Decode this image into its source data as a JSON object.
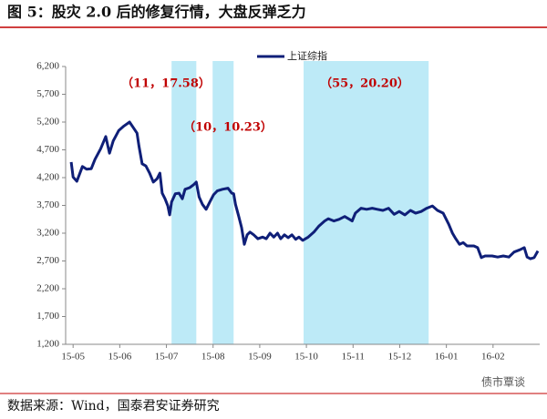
{
  "chart_data": {
    "type": "line",
    "title": "图 5：股灾 2.0 后的修复行情，大盘反弹乏力",
    "source": "数据来源：Wind，国泰君安证券研究",
    "watermark": "债市覃谈",
    "series": [
      {
        "name": "上证综指",
        "color": "#0f1f78",
        "x": [
          -0.04,
          0,
          0.08,
          0.2,
          0.29,
          0.39,
          0.47,
          0.59,
          0.7,
          0.78,
          0.86,
          0.98,
          1.09,
          1.21,
          1.29,
          1.37,
          1.41,
          1.48,
          1.56,
          1.64,
          1.72,
          1.8,
          1.86,
          1.91,
          1.97,
          2.03,
          2.07,
          2.11,
          2.19,
          2.27,
          2.34,
          2.4,
          2.5,
          2.58,
          2.64,
          2.7,
          2.77,
          2.85,
          2.93,
          3.01,
          3.09,
          3.2,
          3.32,
          3.4,
          3.44,
          3.48,
          3.55,
          3.61,
          3.67,
          3.73,
          3.79,
          3.87,
          3.96,
          4.06,
          4.14,
          4.22,
          4.3,
          4.38,
          4.45,
          4.53,
          4.61,
          4.69,
          4.77,
          4.84,
          4.92,
          5.04,
          5.16,
          5.27,
          5.39,
          5.47,
          5.59,
          5.7,
          5.82,
          5.98,
          6.05,
          6.17,
          6.29,
          6.41,
          6.52,
          6.64,
          6.76,
          6.88,
          6.99,
          7.11,
          7.23,
          7.34,
          7.46,
          7.58,
          7.7,
          7.81,
          7.93,
          8.05,
          8.13,
          8.2,
          8.28,
          8.36,
          8.44,
          8.52,
          8.59,
          8.67,
          8.75,
          8.83,
          8.91,
          8.98,
          9.1,
          9.22,
          9.34,
          9.45,
          9.57,
          9.67,
          9.73,
          9.8,
          9.88,
          9.96
        ],
        "values": [
          4480,
          4210,
          4135,
          4400,
          4350,
          4360,
          4530,
          4720,
          4940,
          4640,
          4860,
          5050,
          5130,
          5200,
          5100,
          5000,
          4770,
          4450,
          4410,
          4280,
          4120,
          4180,
          4280,
          3920,
          3820,
          3690,
          3530,
          3760,
          3910,
          3920,
          3820,
          3990,
          4020,
          4070,
          4120,
          3850,
          3720,
          3630,
          3760,
          3890,
          3960,
          3990,
          4010,
          3920,
          3910,
          3720,
          3500,
          3300,
          3000,
          3170,
          3220,
          3170,
          3100,
          3130,
          3100,
          3200,
          3130,
          3200,
          3100,
          3170,
          3120,
          3170,
          3090,
          3130,
          3070,
          3130,
          3220,
          3330,
          3420,
          3460,
          3420,
          3450,
          3500,
          3420,
          3560,
          3650,
          3630,
          3650,
          3630,
          3610,
          3650,
          3540,
          3590,
          3530,
          3610,
          3560,
          3590,
          3650,
          3690,
          3610,
          3560,
          3360,
          3200,
          3100,
          3000,
          3030,
          2970,
          2970,
          2970,
          2940,
          2760,
          2790,
          2790,
          2790,
          2770,
          2790,
          2770,
          2860,
          2900,
          2940,
          2770,
          2740,
          2760,
          2880
        ]
      }
    ],
    "shaded_regions": [
      {
        "x": [
          2.11,
          2.64
        ],
        "color": "#bdeaf7"
      },
      {
        "x": [
          2.99,
          3.44
        ],
        "color": "#bdeaf7"
      },
      {
        "x": [
          4.94,
          7.62
        ],
        "color": "#bdeaf7"
      }
    ],
    "annotations": [
      {
        "text": "（11，17.58）",
        "color": "#c00000"
      },
      {
        "text": "（10，10.23）",
        "color": "#c00000"
      },
      {
        "text": "（55，20.20）",
        "color": "#c00000"
      }
    ],
    "xlim": [
      -0.16,
      10
    ],
    "xticks": [
      {
        "value": 0,
        "label": "15-05"
      },
      {
        "value": 1,
        "label": "15-06"
      },
      {
        "value": 2,
        "label": "15-07"
      },
      {
        "value": 3,
        "label": "15-08"
      },
      {
        "value": 4,
        "label": "15-09"
      },
      {
        "value": 5,
        "label": "15-10"
      },
      {
        "value": 6,
        "label": "15-11"
      },
      {
        "value": 7,
        "label": "15-12"
      },
      {
        "value": 8,
        "label": "16-01"
      },
      {
        "value": 9,
        "label": "16-02"
      }
    ],
    "ylim": [
      1200,
      6200
    ],
    "yticks": [
      {
        "value": 1200,
        "label": "1,200"
      },
      {
        "value": 1700,
        "label": "1,700"
      },
      {
        "value": 2200,
        "label": "2,200"
      },
      {
        "value": 2700,
        "label": "2,700"
      },
      {
        "value": 3200,
        "label": "3,200"
      },
      {
        "value": 3700,
        "label": "3,700"
      },
      {
        "value": 4200,
        "label": "4,200"
      },
      {
        "value": 4700,
        "label": "4,700"
      },
      {
        "value": 5200,
        "label": "5,200"
      },
      {
        "value": 5700,
        "label": "5,700"
      },
      {
        "value": 6200,
        "label": "6,200"
      }
    ],
    "grid": false
  }
}
